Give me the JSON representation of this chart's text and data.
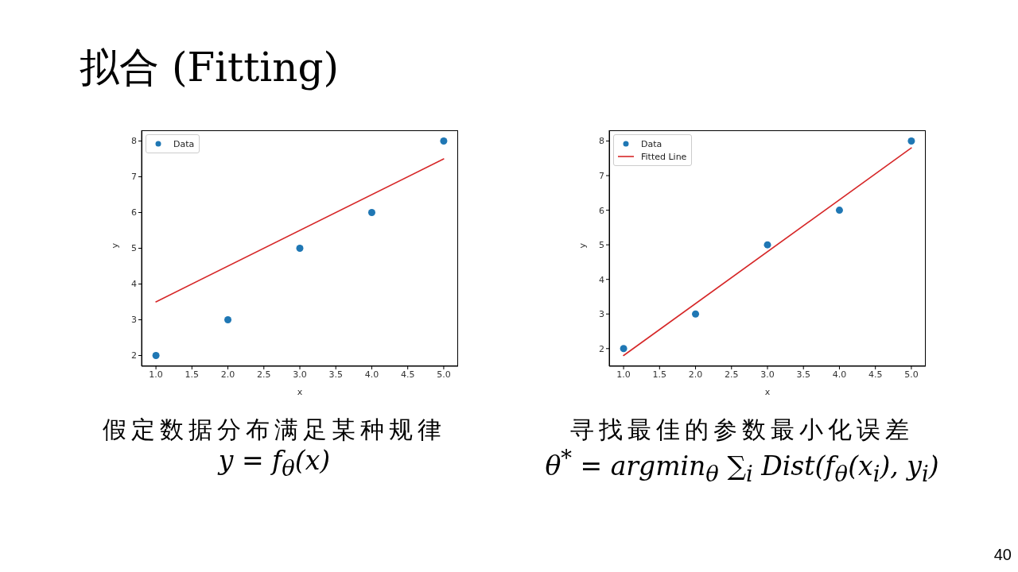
{
  "chart_data": [
    {
      "type": "scatter",
      "title": "拟合 (Fitting)",
      "xlabel": "x",
      "ylabel": "y",
      "xlim": [
        0.8,
        5.2
      ],
      "ylim": [
        1.7,
        8.3
      ],
      "xticks": [
        {
          "value": 1,
          "label": "1.0"
        },
        {
          "value": 1.5,
          "label": "1.5"
        },
        {
          "value": 2,
          "label": "2.0"
        },
        {
          "value": 2.5,
          "label": "2.5"
        },
        {
          "value": 3,
          "label": "3.0"
        },
        {
          "value": 3.5,
          "label": "3.5"
        },
        {
          "value": 4,
          "label": "4.0"
        },
        {
          "value": 4.5,
          "label": "4.5"
        },
        {
          "value": 5,
          "label": "5.0"
        }
      ],
      "yticks": [
        2,
        3,
        4,
        5,
        6,
        7,
        8
      ],
      "legend": "top left",
      "marker": "circle",
      "series": [
        {
          "name": "Data",
          "color": "#1f77b4",
          "x": [
            1,
            2,
            3,
            4,
            5
          ],
          "values": [
            2,
            3,
            5,
            6,
            8
          ]
        },
        {
          "type": "line",
          "color": "#d62728",
          "marker": "none",
          "x": [
            1,
            5
          ],
          "values": [
            3.5,
            7.5
          ]
        }
      ],
      "annotations": [
        "假定数据分布满足某种规律",
        "y = f$_{θ}$(x)"
      ]
    },
    {
      "type": "scatter",
      "xlabel": "x",
      "ylabel": "y",
      "xlim": [
        0.8,
        5.2
      ],
      "ylim": [
        1.49,
        8.31
      ],
      "xticks": [
        {
          "value": 1,
          "label": "1.0"
        },
        {
          "value": 1.5,
          "label": "1.5"
        },
        {
          "value": 2,
          "label": "2.0"
        },
        {
          "value": 2.5,
          "label": "2.5"
        },
        {
          "value": 3,
          "label": "3.0"
        },
        {
          "value": 3.5,
          "label": "3.5"
        },
        {
          "value": 4,
          "label": "4.0"
        },
        {
          "value": 4.5,
          "label": "4.5"
        },
        {
          "value": 5,
          "label": "5.0"
        }
      ],
      "yticks": [
        2,
        3,
        4,
        5,
        6,
        7,
        8
      ],
      "legend": "top left",
      "marker": "circle",
      "series": [
        {
          "name": "Data",
          "color": "#1f77b4",
          "x": [
            1,
            2,
            3,
            4,
            5
          ],
          "values": [
            2,
            3,
            5,
            6,
            8
          ]
        },
        {
          "name": "Fitted Line",
          "type": "line",
          "color": "#d62728",
          "marker": "none",
          "x": [
            1,
            5
          ],
          "values": [
            1.8,
            7.8
          ]
        }
      ],
      "annotations": [
        "寻找最佳的参数最小化误差",
        "θ$^{*}$ = argmin$_{θ}$ ∑$_{i}$ Dist(f$_{θ}$(x$_{i}$), y$_{i}$)",
        "40"
      ]
    }
  ]
}
